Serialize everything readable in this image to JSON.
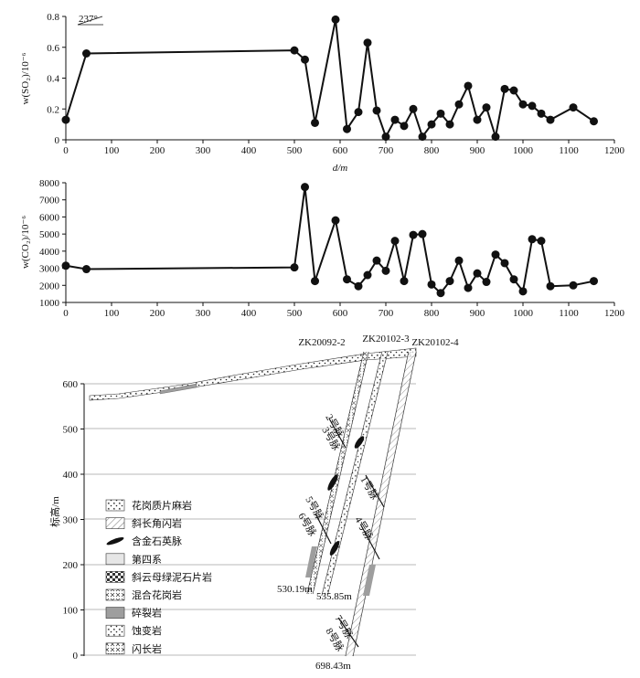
{
  "chart_data": [
    {
      "type": "line",
      "ylabel": "w(SO₂)/10⁻⁶",
      "xlabel": "d/m",
      "annotation": "237°",
      "xlim": [
        0,
        1200
      ],
      "ylim": [
        0,
        0.8
      ],
      "x_ticks": [
        "0",
        "100",
        "200",
        "300",
        "400",
        "500",
        "600",
        "700",
        "800",
        "900",
        "1000",
        "1100",
        "1200"
      ],
      "y_ticks": [
        "0",
        "0.2",
        "0.4",
        "0.6",
        "0.8"
      ],
      "grid": false,
      "series": [
        {
          "x": [
            0,
            45,
            500,
            523,
            545,
            590,
            615,
            640,
            660,
            680,
            700,
            720,
            740,
            760,
            780,
            800,
            820,
            840,
            860,
            880,
            900,
            920,
            940,
            960,
            980,
            1000,
            1020,
            1040,
            1060,
            1110,
            1155
          ],
          "y": [
            0.13,
            0.56,
            0.58,
            0.52,
            0.11,
            0.78,
            0.07,
            0.18,
            0.63,
            0.19,
            0.02,
            0.13,
            0.09,
            0.2,
            0.02,
            0.1,
            0.17,
            0.1,
            0.23,
            0.35,
            0.13,
            0.21,
            0.02,
            0.33,
            0.32,
            0.23,
            0.22,
            0.17,
            0.13,
            0.21,
            0.12
          ]
        }
      ]
    },
    {
      "type": "line",
      "ylabel": "w(CO₂)/10⁻⁶",
      "xlim": [
        0,
        1200
      ],
      "ylim": [
        1000,
        8000
      ],
      "x_ticks": [
        "0",
        "100",
        "200",
        "300",
        "400",
        "500",
        "600",
        "700",
        "800",
        "900",
        "1000",
        "1100",
        "1200"
      ],
      "y_ticks": [
        "1000",
        "2000",
        "3000",
        "4000",
        "5000",
        "6000",
        "7000",
        "8000"
      ],
      "grid": false,
      "series": [
        {
          "x": [
            0,
            45,
            500,
            523,
            545,
            590,
            615,
            640,
            660,
            680,
            700,
            720,
            740,
            760,
            780,
            800,
            820,
            840,
            860,
            880,
            900,
            920,
            940,
            960,
            980,
            1000,
            1020,
            1040,
            1060,
            1110,
            1155
          ],
          "y": [
            3150,
            2950,
            3050,
            7750,
            2250,
            5800,
            2350,
            1950,
            2600,
            3450,
            2850,
            4600,
            2250,
            4950,
            5000,
            2050,
            1550,
            2250,
            3450,
            1850,
            2700,
            2200,
            3800,
            3300,
            2350,
            1650,
            4700,
            4600,
            1950,
            2000,
            2250
          ]
        }
      ]
    }
  ],
  "section": {
    "ylabel": "标高/m",
    "y_ticks": [
      "0",
      "100",
      "200",
      "300",
      "400",
      "500",
      "600"
    ],
    "ylim": [
      0,
      600
    ],
    "drillholes": [
      "ZK20092-2",
      "ZK20102-3",
      "ZK20102-4"
    ],
    "depths": [
      "530.19m",
      "535.85m",
      "698.43m"
    ],
    "vein_labels": [
      "2号脉",
      "3号脉",
      "5号脉",
      "6号脉",
      "1号脉",
      "4号脉",
      "7号脉",
      "8号脉"
    ]
  },
  "legend": [
    {
      "label": "花岗质片麻岩",
      "icon": "granitic-gneiss-pattern"
    },
    {
      "label": "斜长角闪岩",
      "icon": "plagioclase-amphibolite-pattern"
    },
    {
      "label": "含金石英脉",
      "icon": "gold-quartz-vein-symbol"
    },
    {
      "label": "第四系",
      "icon": "quaternary-pattern"
    },
    {
      "label": "斜云母绿泥石片岩",
      "icon": "mica-chlorite-schist-pattern"
    },
    {
      "label": "混合花岗岩",
      "icon": "migmatitic-granite-pattern"
    },
    {
      "label": "碎裂岩",
      "icon": "cataclasite-pattern"
    },
    {
      "label": "蚀变岩",
      "icon": "altered-rock-pattern"
    },
    {
      "label": "闪长岩",
      "icon": "diorite-pattern"
    }
  ],
  "colors": {
    "line": "#111111",
    "marker": "#111111",
    "fill_grey": "#9e9e9e",
    "light_grey": "#e6e6e6"
  }
}
